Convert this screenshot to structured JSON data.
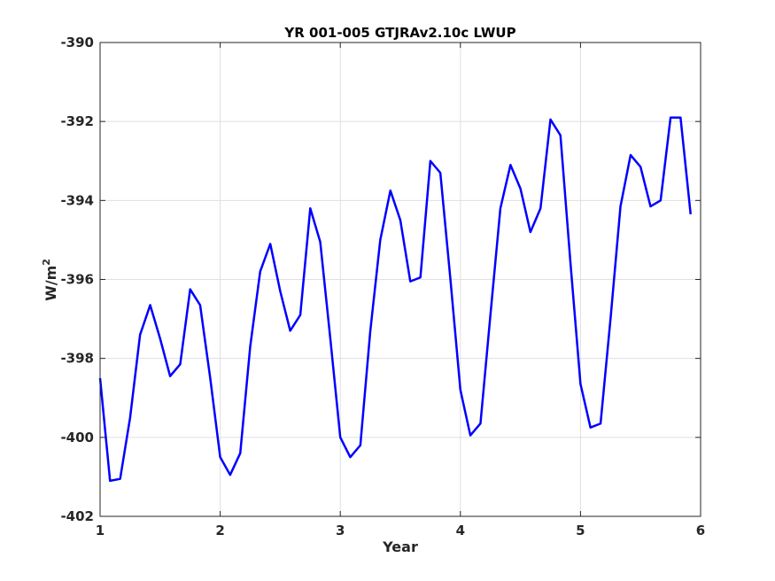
{
  "chart_data": {
    "type": "line",
    "title": "YR 001-005 GTJRAv2.10c LWUP",
    "xlabel": "Year",
    "ylabel": "W/m",
    "ylabel_superscript": "2",
    "xlim": [
      1,
      6
    ],
    "ylim": [
      -402,
      -390
    ],
    "xticks": [
      1,
      2,
      3,
      4,
      5,
      6
    ],
    "yticks": [
      -402,
      -400,
      -398,
      -396,
      -394,
      -392,
      -390
    ],
    "grid": true,
    "line_color": "#0000ff",
    "x": [
      1.0,
      1.083,
      1.167,
      1.25,
      1.333,
      1.417,
      1.5,
      1.583,
      1.667,
      1.75,
      1.833,
      1.917,
      2.0,
      2.083,
      2.167,
      2.25,
      2.333,
      2.417,
      2.5,
      2.583,
      2.667,
      2.75,
      2.833,
      2.917,
      3.0,
      3.083,
      3.167,
      3.25,
      3.333,
      3.417,
      3.5,
      3.583,
      3.667,
      3.75,
      3.833,
      3.917,
      4.0,
      4.083,
      4.167,
      4.25,
      4.333,
      4.417,
      4.5,
      4.583,
      4.667,
      4.75,
      4.833,
      4.917,
      5.0,
      5.083,
      5.167,
      5.25,
      5.333,
      5.417,
      5.5,
      5.583,
      5.667,
      5.75,
      5.833,
      5.917
    ],
    "y": [
      -398.5,
      -401.1,
      -401.05,
      -399.5,
      -397.4,
      -396.65,
      -397.5,
      -398.45,
      -398.15,
      -396.25,
      -396.65,
      -398.5,
      -400.5,
      -400.95,
      -400.4,
      -397.7,
      -395.8,
      -395.1,
      -396.3,
      -397.3,
      -396.9,
      -394.2,
      -395.05,
      -397.5,
      -400.0,
      -400.5,
      -400.2,
      -397.3,
      -395.0,
      -393.75,
      -394.5,
      -396.05,
      -395.95,
      -393.0,
      -393.3,
      -396.0,
      -398.8,
      -399.95,
      -399.65,
      -396.9,
      -394.2,
      -393.1,
      -393.7,
      -394.8,
      -394.2,
      -391.95,
      -392.35,
      -395.6,
      -398.65,
      -399.75,
      -399.65,
      -397.0,
      -394.15,
      -392.85,
      -393.15,
      -394.15,
      -394.0,
      -391.9,
      -391.9,
      -394.35
    ]
  }
}
